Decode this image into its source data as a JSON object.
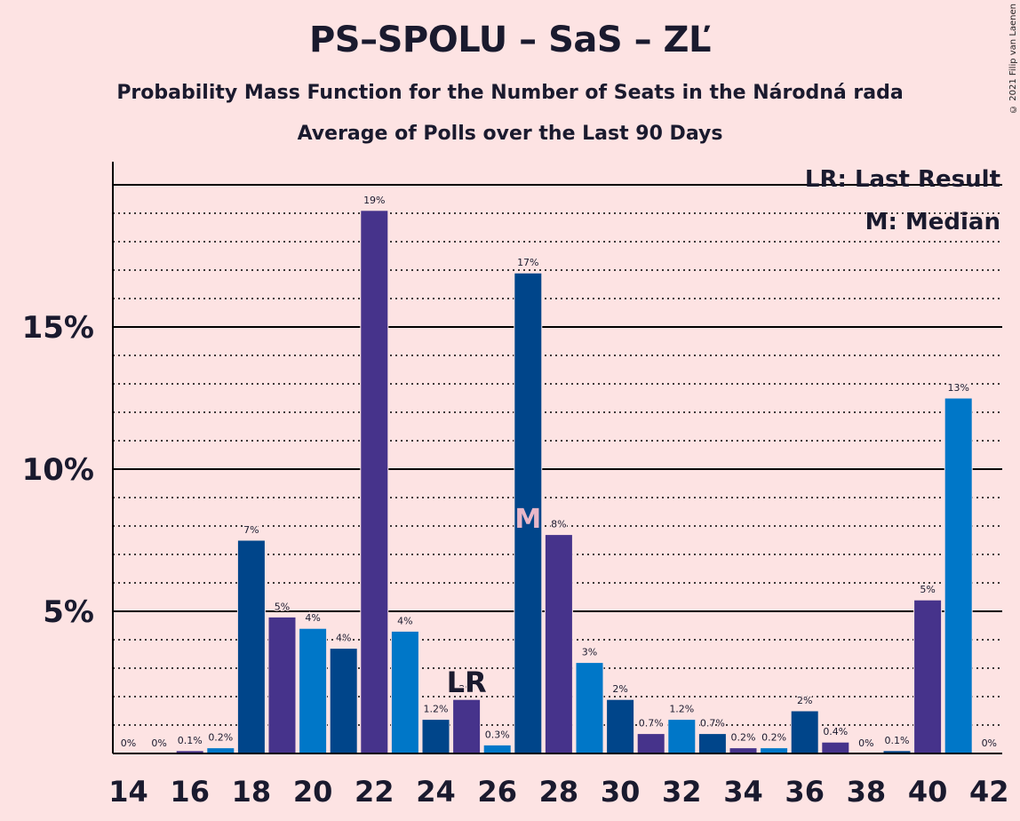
{
  "header": {
    "title": "PS–SPOLU – SaS – ZĽ",
    "subtitle": "Probability Mass Function for the Number of Seats in the Národná rada",
    "subtitle2": "Average of Polls over the Last 90 Days",
    "copyright": "© 2021 Filip van Laenen"
  },
  "chart_data": {
    "type": "bar",
    "x": [
      14,
      15,
      16,
      17,
      18,
      19,
      20,
      21,
      22,
      23,
      24,
      25,
      26,
      27,
      28,
      29,
      30,
      31,
      32,
      33,
      34,
      35,
      36,
      37,
      38,
      39,
      40,
      41,
      42
    ],
    "values": [
      0,
      0,
      0.1,
      0.2,
      7.5,
      4.8,
      4.4,
      3.7,
      19.1,
      4.3,
      1.2,
      1.9,
      0.3,
      16.9,
      7.7,
      3.2,
      1.9,
      0.7,
      1.2,
      0.7,
      0.2,
      0.2,
      1.5,
      0.4,
      0,
      0.1,
      5.4,
      12.5,
      0
    ],
    "labels": [
      "0%",
      "0%",
      "0.1%",
      "0.2%",
      "7%",
      "5%",
      "4%",
      "4%",
      "19%",
      "4%",
      "1.2%",
      "2%",
      "0.3%",
      "17%",
      "8%",
      "3%",
      "2%",
      "0.7%",
      "1.2%",
      "0.7%",
      "0.2%",
      "0.2%",
      "2%",
      "0.4%",
      "0%",
      "0.1%",
      "5%",
      "13%",
      "0%"
    ],
    "x_tick_labels": [
      "14",
      "16",
      "18",
      "20",
      "22",
      "24",
      "26",
      "28",
      "30",
      "32",
      "34",
      "36",
      "38",
      "40",
      "42"
    ],
    "y_tick_labels": [
      "5%",
      "10%",
      "15%"
    ],
    "ylim": [
      0,
      20.8
    ],
    "y_major_step": 5,
    "y_minor_step": 1,
    "last_result_seat": 25,
    "median_seat": 27,
    "last_result_label": "LR",
    "median_label": "M",
    "legend": [
      "LR: Last Result",
      "M: Median"
    ],
    "legend_position": "top-right",
    "colors": [
      "#0077c8",
      "#00458a",
      "#46338b"
    ]
  }
}
